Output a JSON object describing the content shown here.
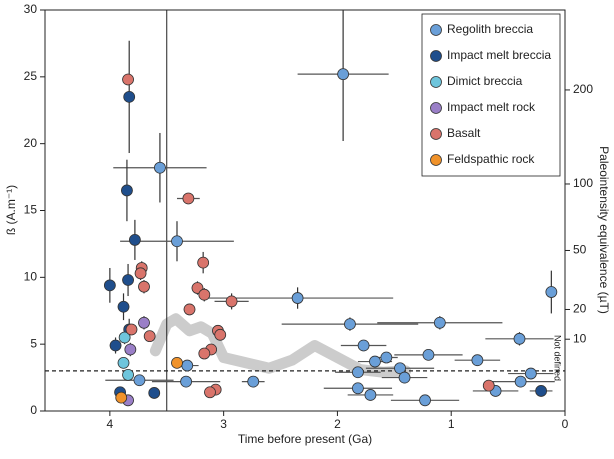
{
  "chart_data": {
    "type": "scatter",
    "xlabel": "Time before present (Ga)",
    "ylabel": "ß (A.m⁻¹)",
    "y2label": "Paleointensity equivalence (µT)",
    "annotation": "Not defined",
    "xlim": [
      4.57,
      0
    ],
    "xticks": [
      4,
      3,
      2,
      1,
      0
    ],
    "ylim": [
      0,
      30
    ],
    "yticks": [
      0,
      5,
      10,
      15,
      20,
      25,
      30
    ],
    "y2lim": [
      0,
      312
    ],
    "y2scale": "sqrt",
    "y2ticks": [
      10,
      20,
      50,
      100,
      200
    ],
    "hline": 3.0,
    "vline": 3.5,
    "legend": "upper right",
    "curve": {
      "color": "#cccccc",
      "x": [
        3.6,
        3.5,
        3.42,
        3.3,
        3.2,
        3.1,
        3.0,
        2.8,
        2.6,
        2.4,
        2.2,
        2.0,
        1.8,
        1.6,
        1.4
      ],
      "y": [
        4.5,
        6.5,
        6.9,
        6.0,
        6.3,
        5.8,
        4.0,
        3.6,
        3.2,
        3.8,
        4.9,
        4.0,
        3.1,
        2.9,
        3.0
      ]
    },
    "series": [
      {
        "name": "Regolith breccia",
        "color": "#6a9fd8",
        "x": [
          1.95,
          3.56,
          3.41,
          2.35,
          0.12,
          1.89,
          1.1,
          0.4,
          1.77,
          1.57,
          1.67,
          1.2,
          1.82,
          1.45,
          1.41,
          0.77,
          0.3,
          0.39,
          1.82,
          1.71,
          1.23,
          0.61,
          2.74,
          3.33,
          3.32,
          3.74
        ],
        "y": [
          25.2,
          18.2,
          12.7,
          8.45,
          8.9,
          6.5,
          6.6,
          5.4,
          4.9,
          4.0,
          3.7,
          4.2,
          2.9,
          3.2,
          2.5,
          3.8,
          2.8,
          2.2,
          1.7,
          1.2,
          0.8,
          1.5,
          2.2,
          2.2,
          3.4,
          2.3
        ],
        "xerr": [
          0.4,
          0.41,
          0.5,
          0.84,
          0,
          0.6,
          0.55,
          0.3,
          0.2,
          0.1,
          0.15,
          0.3,
          0.2,
          0.3,
          0.2,
          0.2,
          0.2,
          0.3,
          0.3,
          0.2,
          0.3,
          0.2,
          0.1,
          0.3,
          0.1,
          0.3
        ],
        "yerr": [
          5,
          2.6,
          1.5,
          0.8,
          1.6,
          0.5,
          0.5,
          0.5,
          0.4,
          0.3,
          0.3,
          0.4,
          0.3,
          0.3,
          0.3,
          0.3,
          0.3,
          0.3,
          0.3,
          0.3,
          0.3,
          0.3,
          0.3,
          0.3,
          0.3,
          0.3
        ]
      },
      {
        "name": "Impact melt breccia",
        "color": "#1f4e8c",
        "x": [
          3.83,
          3.85,
          3.78,
          3.84,
          4.0,
          3.88,
          3.83,
          3.61,
          0.21,
          3.95,
          3.91
        ],
        "y": [
          23.5,
          16.5,
          12.8,
          9.8,
          9.4,
          7.8,
          6.1,
          1.35,
          1.5,
          4.9,
          1.4
        ],
        "xerr": [
          0.05,
          0.05,
          0.05,
          0.05,
          0.05,
          0.05,
          0.05,
          0.05,
          0.1,
          0.05,
          0.05
        ],
        "yerr": [
          4.2,
          2.3,
          1.5,
          1.2,
          1.3,
          1.0,
          0.8,
          0.3,
          0.3,
          0.6,
          0.3
        ]
      },
      {
        "name": "Dimict breccia",
        "color": "#6ec5dc",
        "x": [
          3.87,
          3.88,
          3.84
        ],
        "y": [
          5.5,
          3.6,
          2.7
        ],
        "xerr": [
          0.05,
          0.05,
          0.05
        ],
        "yerr": [
          0.5,
          0.4,
          0.4
        ]
      },
      {
        "name": "Impact melt rock",
        "color": "#9a7fc7",
        "x": [
          3.7,
          3.82,
          3.84
        ],
        "y": [
          6.6,
          4.6,
          0.8
        ],
        "xerr": [
          0.05,
          0.05,
          0.05
        ],
        "yerr": [
          0.5,
          0.5,
          0.3
        ]
      },
      {
        "name": "Basalt",
        "color": "#d9746b",
        "x": [
          3.84,
          3.31,
          3.18,
          3.23,
          3.17,
          2.93,
          3.3,
          3.72,
          3.73,
          3.7,
          3.65,
          3.05,
          3.03,
          3.11,
          3.17,
          3.07,
          3.12,
          3.81,
          0.67
        ],
        "y": [
          24.8,
          15.9,
          11.1,
          9.2,
          8.7,
          8.2,
          7.6,
          10.7,
          10.3,
          9.3,
          5.6,
          6.0,
          5.7,
          4.6,
          4.3,
          1.6,
          1.4,
          6.1,
          1.9
        ],
        "xerr": [
          0.05,
          0.1,
          0.05,
          0.05,
          0.05,
          0.15,
          0.05,
          0.05,
          0.05,
          0.05,
          0.05,
          0.05,
          0.05,
          0.05,
          0.05,
          0.05,
          0.05,
          0.05,
          0.05
        ],
        "yerr": [
          0.3,
          0.3,
          0.8,
          0.5,
          0.5,
          0.6,
          0.4,
          0.5,
          0.5,
          0.5,
          0.4,
          0.4,
          0.4,
          0.4,
          0.3,
          0.3,
          0.3,
          0.4,
          0.3
        ]
      },
      {
        "name": "Feldspathic rock",
        "color": "#f0922a",
        "x": [
          3.41,
          3.9
        ],
        "y": [
          3.6,
          1.0
        ],
        "xerr": [
          0.05,
          0.05
        ],
        "yerr": [
          0.4,
          0.3
        ]
      }
    ]
  }
}
